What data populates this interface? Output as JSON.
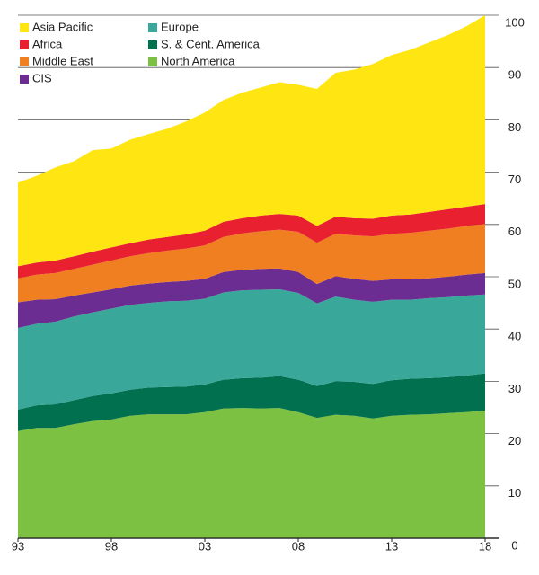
{
  "chart_data": {
    "type": "stacked_area",
    "categories": [
      "93",
      null,
      null,
      null,
      null,
      "98",
      null,
      null,
      null,
      null,
      "03",
      null,
      null,
      null,
      null,
      "08",
      null,
      null,
      null,
      null,
      "13",
      null,
      null,
      null,
      null,
      "18"
    ],
    "series": [
      {
        "name": "Asia Pacific",
        "color": "#ffe512",
        "values": [
          16.0,
          16.6,
          17.8,
          18.2,
          19.4,
          18.9,
          19.8,
          20.2,
          20.7,
          21.6,
          22.6,
          23.3,
          24.0,
          24.5,
          25.2,
          25.0,
          26.2,
          27.5,
          28.4,
          29.6,
          30.7,
          31.5,
          32.4,
          33.3,
          34.5,
          36.1
        ]
      },
      {
        "name": "Africa",
        "color": "#e8202f",
        "values": [
          2.3,
          2.3,
          2.4,
          2.4,
          2.5,
          2.5,
          2.5,
          2.6,
          2.6,
          2.7,
          2.8,
          2.9,
          2.9,
          3.0,
          3.0,
          3.1,
          3.2,
          3.3,
          3.3,
          3.4,
          3.5,
          3.5,
          3.6,
          3.7,
          3.7,
          3.8
        ]
      },
      {
        "name": "Middle East",
        "color": "#f07f22",
        "values": [
          4.6,
          4.8,
          5.0,
          5.1,
          5.3,
          5.5,
          5.6,
          5.8,
          6.0,
          6.2,
          6.4,
          6.7,
          7.0,
          7.2,
          7.4,
          7.7,
          7.9,
          8.1,
          8.3,
          8.5,
          8.7,
          8.9,
          9.1,
          9.2,
          9.3,
          9.4
        ]
      },
      {
        "name": "CIS",
        "color": "#6b2d91",
        "values": [
          4.9,
          4.6,
          4.3,
          4.0,
          3.8,
          3.7,
          3.7,
          3.7,
          3.7,
          3.8,
          3.8,
          3.9,
          3.9,
          4.0,
          4.0,
          4.0,
          3.7,
          3.9,
          4.0,
          4.0,
          3.9,
          3.9,
          3.8,
          3.9,
          4.0,
          4.1
        ]
      },
      {
        "name": "Europe",
        "color": "#3aa79b",
        "values": [
          15.6,
          15.6,
          15.8,
          16.0,
          16.0,
          16.2,
          16.2,
          16.2,
          16.4,
          16.4,
          16.4,
          16.7,
          16.8,
          16.8,
          16.6,
          16.6,
          15.8,
          16.2,
          15.7,
          15.7,
          15.4,
          15.1,
          15.3,
          15.3,
          15.3,
          15.1
        ]
      },
      {
        "name": "S. & Cent. America",
        "color": "#00704f",
        "values": [
          4.1,
          4.3,
          4.5,
          4.6,
          4.8,
          5.0,
          5.0,
          5.1,
          5.2,
          5.3,
          5.3,
          5.5,
          5.7,
          5.9,
          6.1,
          6.2,
          6.1,
          6.4,
          6.5,
          6.6,
          6.8,
          6.9,
          6.9,
          6.9,
          7.0,
          7.1
        ]
      },
      {
        "name": "North America",
        "color": "#7dc142",
        "values": [
          20.5,
          21.1,
          21.1,
          21.8,
          22.4,
          22.7,
          23.4,
          23.7,
          23.7,
          23.7,
          24.1,
          24.8,
          24.9,
          24.8,
          24.9,
          24.1,
          23.0,
          23.6,
          23.4,
          22.9,
          23.4,
          23.6,
          23.7,
          23.9,
          24.1,
          24.4
        ]
      }
    ],
    "ylim": [
      0,
      100
    ],
    "yticks": [
      0,
      10,
      20,
      30,
      40,
      50,
      60,
      70,
      80,
      90,
      100
    ],
    "grid": true,
    "legend": "top-left"
  }
}
